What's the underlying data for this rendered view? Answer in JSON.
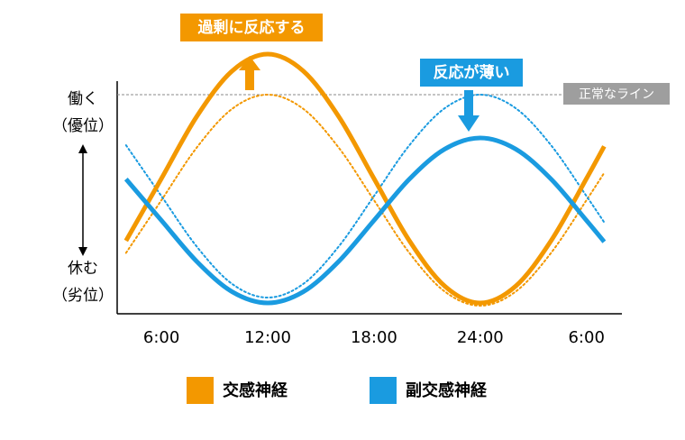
{
  "chart_data": {
    "type": "line",
    "x": [
      4,
      6,
      8,
      10,
      12,
      14,
      16,
      18,
      20,
      22,
      24,
      26,
      28,
      30,
      31
    ],
    "xlim": [
      3.5,
      32
    ],
    "ylim": [
      0,
      100
    ],
    "xticks": [
      {
        "value": 6,
        "label": "6:00"
      },
      {
        "value": 12,
        "label": "12:00"
      },
      {
        "value": 18,
        "label": "18:00"
      },
      {
        "value": 24,
        "label": "24:00"
      },
      {
        "value": 30,
        "label": "6:00"
      }
    ],
    "y_labels": {
      "top": [
        "働く",
        "（優位）"
      ],
      "bottom": [
        "休む",
        "（劣位）"
      ]
    },
    "normal_line": {
      "label": "正常なライン",
      "value": 81
    },
    "annotations": [
      {
        "text": "過剰に反応する",
        "color": "#f39800"
      },
      {
        "text": "反応が薄い",
        "color": "#1a9be0"
      }
    ],
    "series": [
      {
        "color": "#f39800",
        "style": "dotted",
        "values": [
          22.5,
          42,
          61.5,
          75.8,
          81,
          75.8,
          61.5,
          42,
          22.5,
          8.2,
          3,
          8.2,
          22.5,
          42,
          52.1
        ]
      },
      {
        "color": "#1a9be0",
        "style": "dotted",
        "values": [
          62.3,
          43.5,
          24.8,
          11,
          6,
          11,
          24.8,
          43.5,
          62.3,
          76,
          81,
          76,
          62.3,
          43.5,
          33.8
        ]
      },
      {
        "name": "交感神経",
        "color": "#f39800",
        "style": "solid",
        "values": [
          27,
          50,
          73,
          89.8,
          96,
          89.8,
          73,
          50,
          27,
          10.2,
          4,
          10.2,
          27,
          50,
          61.9
        ]
      },
      {
        "name": "副交感神経",
        "color": "#1a9be0",
        "style": "solid",
        "values": [
          49.8,
          34.5,
          19.3,
          8.1,
          4,
          8.1,
          19.3,
          34.5,
          49.8,
          60.9,
          65,
          60.9,
          49.8,
          34.5,
          26.6
        ]
      }
    ]
  }
}
